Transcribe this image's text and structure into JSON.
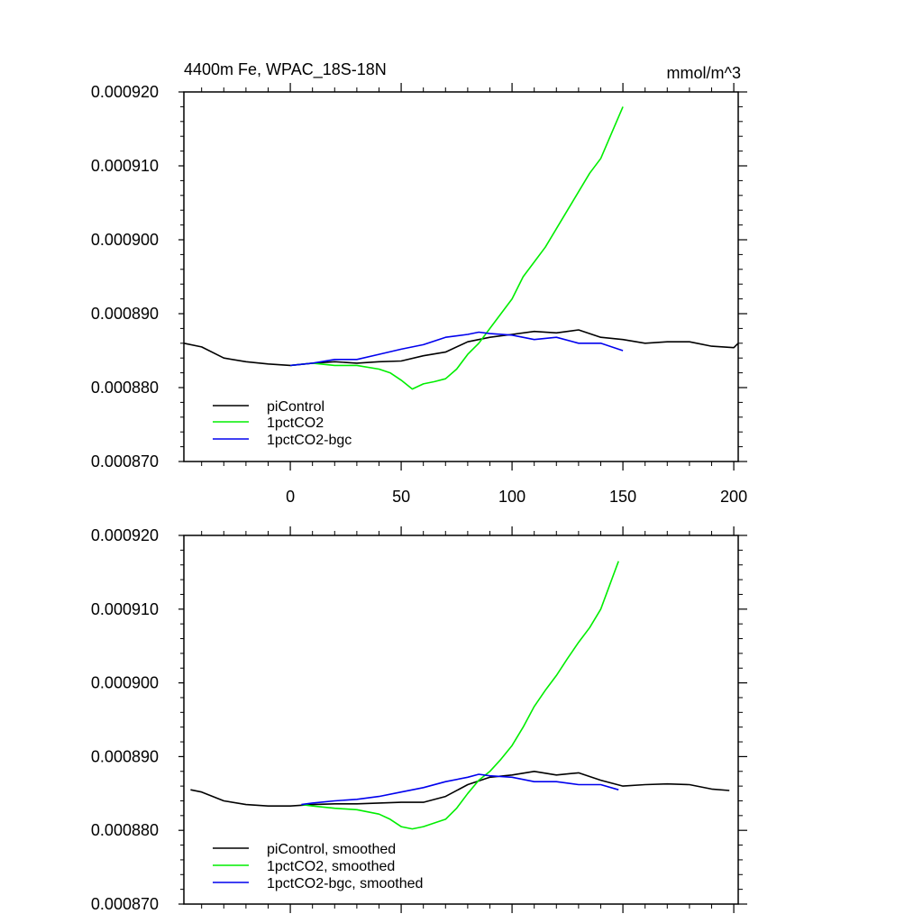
{
  "chart_data": [
    {
      "type": "line",
      "title": "4400m Fe, WPAC_18S-18N",
      "units": "mmol/m^3",
      "xlim": [
        -48,
        202
      ],
      "ylim": [
        0.00087,
        0.00092
      ],
      "xticks": [
        0,
        50,
        100,
        150,
        200
      ],
      "xtick_labels": [
        "0",
        "50",
        "100",
        "150",
        "200"
      ],
      "yticks": [
        0.00087,
        0.00088,
        0.00089,
        0.0009,
        0.00091,
        0.00092
      ],
      "ytick_labels": [
        "0.000870",
        "0.000880",
        "0.000890",
        "0.000900",
        "0.000910",
        "0.000920"
      ],
      "legend_position": "bottom-left",
      "series": [
        {
          "name": "piControl",
          "color": "#000000",
          "x": [
            -48,
            -40,
            -30,
            -20,
            -10,
            0,
            10,
            20,
            30,
            40,
            50,
            60,
            70,
            80,
            90,
            100,
            110,
            120,
            130,
            140,
            150,
            160,
            170,
            180,
            190,
            200,
            202
          ],
          "y": [
            0.000886,
            0.0008855,
            0.000884,
            0.0008835,
            0.0008832,
            0.000883,
            0.0008833,
            0.0008835,
            0.0008833,
            0.0008835,
            0.0008836,
            0.0008843,
            0.0008848,
            0.0008862,
            0.0008868,
            0.0008872,
            0.0008876,
            0.0008874,
            0.0008878,
            0.0008868,
            0.0008865,
            0.000886,
            0.0008862,
            0.0008862,
            0.0008856,
            0.0008854,
            0.000886
          ]
        },
        {
          "name": "1pctCO2",
          "color": "#00ee00",
          "x": [
            0,
            10,
            20,
            30,
            40,
            45,
            50,
            55,
            60,
            65,
            70,
            75,
            80,
            85,
            90,
            95,
            100,
            105,
            110,
            115,
            120,
            125,
            130,
            135,
            140,
            145,
            150
          ],
          "y": [
            0.000883,
            0.0008833,
            0.000883,
            0.000883,
            0.0008825,
            0.000882,
            0.000881,
            0.0008798,
            0.0008805,
            0.0008808,
            0.0008812,
            0.0008825,
            0.0008845,
            0.000886,
            0.000888,
            0.00089,
            0.000892,
            0.000895,
            0.000897,
            0.000899,
            0.0009015,
            0.000904,
            0.0009065,
            0.000909,
            0.000911,
            0.0009145,
            0.000918
          ]
        },
        {
          "name": "1pctCO2-bgc",
          "color": "#0000ee",
          "x": [
            0,
            10,
            20,
            30,
            40,
            50,
            60,
            70,
            80,
            85,
            90,
            100,
            110,
            120,
            130,
            140,
            150
          ],
          "y": [
            0.000883,
            0.0008833,
            0.0008838,
            0.0008838,
            0.0008845,
            0.0008852,
            0.0008858,
            0.0008868,
            0.0008872,
            0.0008875,
            0.0008873,
            0.0008871,
            0.0008865,
            0.0008868,
            0.000886,
            0.000886,
            0.000885
          ]
        }
      ]
    },
    {
      "type": "line",
      "xlim": [
        -48,
        202
      ],
      "ylim": [
        0.00087,
        0.00092
      ],
      "xticks": [
        0,
        50,
        100,
        150,
        200
      ],
      "yticks": [
        0.00087,
        0.00088,
        0.00089,
        0.0009,
        0.00091,
        0.00092
      ],
      "ytick_labels": [
        "0.000870",
        "0.000880",
        "0.000890",
        "0.000900",
        "0.000910",
        "0.000920"
      ],
      "legend_position": "bottom-left",
      "series": [
        {
          "name": "piControl, smoothed",
          "color": "#000000",
          "x": [
            -45,
            -40,
            -30,
            -20,
            -10,
            0,
            10,
            20,
            30,
            40,
            50,
            60,
            70,
            80,
            90,
            100,
            110,
            120,
            130,
            140,
            150,
            160,
            170,
            180,
            190,
            198
          ],
          "y": [
            0.0008855,
            0.0008852,
            0.000884,
            0.0008835,
            0.0008833,
            0.0008833,
            0.0008835,
            0.0008836,
            0.0008836,
            0.0008837,
            0.0008838,
            0.0008838,
            0.0008846,
            0.0008862,
            0.0008872,
            0.0008875,
            0.000888,
            0.0008875,
            0.0008878,
            0.0008868,
            0.000886,
            0.0008862,
            0.0008863,
            0.0008862,
            0.0008856,
            0.0008854
          ]
        },
        {
          "name": "1pctCO2, smoothed",
          "color": "#00ee00",
          "x": [
            5,
            10,
            20,
            30,
            40,
            45,
            50,
            55,
            60,
            65,
            70,
            75,
            80,
            85,
            90,
            95,
            100,
            105,
            110,
            115,
            120,
            125,
            130,
            135,
            140,
            148
          ],
          "y": [
            0.0008835,
            0.0008833,
            0.000883,
            0.0008828,
            0.0008822,
            0.0008815,
            0.0008805,
            0.0008802,
            0.0008805,
            0.000881,
            0.0008815,
            0.000883,
            0.000885,
            0.0008868,
            0.000888,
            0.00088965,
            0.0008915,
            0.000894,
            0.0008968,
            0.000899,
            0.000901,
            0.0009033,
            0.0009055,
            0.0009075,
            0.00091,
            0.0009165
          ]
        },
        {
          "name": "1pctCO2-bgc, smoothed",
          "color": "#0000ee",
          "x": [
            5,
            10,
            20,
            30,
            40,
            50,
            60,
            70,
            80,
            85,
            90,
            100,
            110,
            120,
            130,
            140,
            148
          ],
          "y": [
            0.0008835,
            0.0008837,
            0.000884,
            0.0008842,
            0.0008846,
            0.0008852,
            0.0008858,
            0.0008866,
            0.0008872,
            0.0008876,
            0.0008874,
            0.0008872,
            0.0008866,
            0.0008866,
            0.0008862,
            0.0008862,
            0.0008855
          ]
        }
      ]
    }
  ]
}
